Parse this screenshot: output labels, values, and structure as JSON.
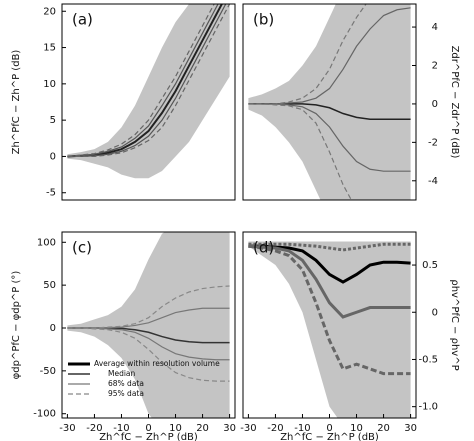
{
  "chart_data": [
    {
      "type": "line",
      "panel_label": "(a)",
      "ylabel": "Zh^PfC − Zh^P (dB)",
      "xlabel": null,
      "x": [
        -30,
        -25,
        -20,
        -15,
        -10,
        -5,
        0,
        5,
        10,
        15,
        20,
        25,
        30
      ],
      "xlim": [
        -32,
        32
      ],
      "xticks": [],
      "ylim": [
        -6,
        21
      ],
      "yticks": [
        -5,
        0,
        5,
        10,
        15,
        20
      ],
      "yaxis_side": "left",
      "band": {
        "color": "#c4c4c4",
        "upper": [
          0.3,
          0.6,
          1,
          2,
          4,
          7,
          11,
          15,
          18.5,
          21,
          24,
          27,
          30
        ],
        "lower": [
          -0.3,
          -0.5,
          -1,
          -1.5,
          -2.5,
          -3,
          -3,
          -2,
          0,
          2,
          5,
          8,
          11
        ]
      },
      "series": [
        {
          "name": "Median",
          "color": "#222222",
          "dash": "none",
          "width": 2,
          "values": [
            0,
            0.1,
            0.2,
            0.5,
            1,
            2,
            3.5,
            6,
            9,
            12.5,
            16,
            19.5,
            23
          ]
        },
        {
          "name": "68% data",
          "color": "#555555",
          "dash": "none",
          "width": 1.2,
          "values": [
            0,
            0.1,
            0.3,
            0.7,
            1.3,
            2.5,
            4.2,
            7,
            10,
            13.5,
            17,
            20.5,
            24
          ]
        },
        {
          "name": "68% data",
          "color": "#555555",
          "dash": "none",
          "width": 1.2,
          "values": [
            0,
            0,
            0.1,
            0.3,
            0.7,
            1.5,
            2.8,
            5,
            8,
            11.5,
            15,
            18.5,
            22
          ]
        },
        {
          "name": "95% data",
          "color": "#666666",
          "dash": "5 3",
          "width": 1.2,
          "values": [
            0,
            0.2,
            0.4,
            0.9,
            1.7,
            3,
            5,
            8,
            11,
            14.5,
            18,
            21.5,
            25
          ]
        },
        {
          "name": "95% data",
          "color": "#666666",
          "dash": "5 3",
          "width": 1.2,
          "values": [
            0,
            0,
            0,
            0.2,
            0.5,
            1.2,
            2.2,
            4,
            7,
            10.5,
            14,
            17.5,
            21
          ]
        }
      ]
    },
    {
      "type": "line",
      "panel_label": "(b)",
      "ylabel": "Zdr^PfC − Zdr^P (dB)",
      "xlabel": null,
      "x": [
        -30,
        -25,
        -20,
        -15,
        -10,
        -5,
        0,
        5,
        10,
        15,
        20,
        25,
        30
      ],
      "xlim": [
        -32,
        32
      ],
      "xticks": [],
      "ylim": [
        -5,
        5.2
      ],
      "yticks": [
        -4,
        -2,
        0,
        2,
        4
      ],
      "yaxis_side": "right",
      "band": {
        "color": "#c4c4c4",
        "upper": [
          0.3,
          0.5,
          0.8,
          1.2,
          2,
          3,
          4.5,
          6,
          7,
          7,
          7,
          7,
          7
        ],
        "lower": [
          -0.3,
          -0.6,
          -1.2,
          -2,
          -3,
          -4.5,
          -6,
          -7,
          -7,
          -7,
          -7,
          -7,
          -7
        ]
      },
      "series": [
        {
          "name": "Median",
          "color": "#222222",
          "dash": "none",
          "width": 1.5,
          "values": [
            0,
            0,
            0,
            0,
            0,
            -0.05,
            -0.2,
            -0.5,
            -0.7,
            -0.8,
            -0.8,
            -0.8,
            -0.8
          ]
        },
        {
          "name": "68% data",
          "color": "#666666",
          "dash": "none",
          "width": 1.2,
          "values": [
            0,
            0,
            0,
            0.05,
            0.1,
            0.3,
            0.8,
            1.8,
            3,
            3.9,
            4.6,
            4.9,
            5
          ]
        },
        {
          "name": "68% data",
          "color": "#666666",
          "dash": "none",
          "width": 1.2,
          "values": [
            0,
            0,
            0,
            -0.05,
            -0.15,
            -0.5,
            -1.2,
            -2.2,
            -3,
            -3.4,
            -3.5,
            -3.5,
            -3.5
          ]
        },
        {
          "name": "95% data",
          "color": "#777777",
          "dash": "5 3",
          "width": 1.2,
          "values": [
            0,
            0,
            0,
            0.1,
            0.3,
            0.8,
            1.8,
            3.3,
            4.5,
            5.5,
            6,
            6,
            6
          ]
        },
        {
          "name": "95% data",
          "color": "#777777",
          "dash": "5 3",
          "width": 1.2,
          "values": [
            0,
            0,
            -0.05,
            -0.1,
            -0.3,
            -1,
            -2.5,
            -4.2,
            -5.5,
            -6,
            -6,
            -6,
            -6
          ]
        }
      ]
    },
    {
      "type": "line",
      "panel_label": "(c)",
      "ylabel": "φdp^PfC − φdp^P (°)",
      "xlabel": "Zh^fC − Zh^P (dB)",
      "x": [
        -30,
        -25,
        -20,
        -15,
        -10,
        -5,
        0,
        5,
        10,
        15,
        20,
        25,
        30
      ],
      "xlim": [
        -32,
        32
      ],
      "xticks": [
        -30,
        -20,
        -10,
        0,
        10,
        20,
        30
      ],
      "ylim": [
        -105,
        112
      ],
      "yticks": [
        -100,
        -50,
        0,
        50,
        100
      ],
      "yaxis_side": "left",
      "band": {
        "color": "#c4c4c4",
        "upper": [
          3,
          5,
          10,
          15,
          25,
          45,
          80,
          110,
          120,
          120,
          120,
          120,
          120
        ],
        "lower": [
          -3,
          -5,
          -10,
          -20,
          -35,
          -60,
          -100,
          -120,
          -120,
          -120,
          -120,
          -120,
          -120
        ]
      },
      "series": [
        {
          "name": "Median",
          "color": "#333333",
          "dash": "none",
          "width": 1.5,
          "values": [
            0,
            0,
            0,
            0,
            -0.5,
            -2,
            -5,
            -10,
            -14,
            -16,
            -17,
            -17,
            -17
          ]
        },
        {
          "name": "68% data",
          "color": "#777777",
          "dash": "none",
          "width": 1.2,
          "values": [
            0,
            0,
            0,
            0.5,
            1,
            3,
            6,
            12,
            18,
            21,
            23,
            23,
            23
          ]
        },
        {
          "name": "68% data",
          "color": "#777777",
          "dash": "none",
          "width": 1.2,
          "values": [
            0,
            0,
            0,
            -1,
            -2,
            -5,
            -12,
            -22,
            -30,
            -34,
            -36,
            -37,
            -37
          ]
        },
        {
          "name": "95% data",
          "color": "#888888",
          "dash": "5 3",
          "width": 1.2,
          "values": [
            0,
            0,
            0,
            1,
            2,
            5,
            12,
            25,
            35,
            42,
            46,
            48,
            49
          ]
        },
        {
          "name": "95% data",
          "color": "#888888",
          "dash": "5 3",
          "width": 1.2,
          "values": [
            0,
            0,
            -1,
            -2,
            -5,
            -12,
            -25,
            -40,
            -52,
            -58,
            -61,
            -62,
            -62
          ]
        }
      ],
      "legend": {
        "corner": "lower left",
        "entries": [
          {
            "label": "Average within resolution volume",
            "color": "#000000",
            "dash": "none",
            "width": 3
          },
          {
            "label": "Median",
            "color": "#333333",
            "dash": "none",
            "width": 1.5
          },
          {
            "label": "68% data",
            "color": "#777777",
            "dash": "none",
            "width": 1.2
          },
          {
            "label": "95% data",
            "color": "#888888",
            "dash": "5 3",
            "width": 1.2
          }
        ]
      }
    },
    {
      "type": "line",
      "panel_label": "(d)",
      "ylabel": "ρhv^PfC − ρhv^P",
      "xlabel": "Zh^fC − Zh^P (dB)",
      "x": [
        -30,
        -25,
        -20,
        -15,
        -10,
        -5,
        0,
        5,
        10,
        15,
        20,
        25,
        30
      ],
      "xlim": [
        -32,
        32
      ],
      "xticks": [
        -30,
        -20,
        -10,
        0,
        10,
        20,
        30
      ],
      "ylim": [
        -1.12,
        0.85
      ],
      "yticks": [
        {
          "value": -1,
          "label": "-1.0"
        },
        -0.5,
        0,
        0.5
      ],
      "yaxis_side": "right",
      "band": {
        "color": "#c4c4c4",
        "upper": [
          0.75,
          0.75,
          0.75,
          0.75,
          0.75,
          0.75,
          0.75,
          0.75,
          0.75,
          0.75,
          0.75,
          0.75,
          0.75
        ],
        "lower": [
          0.7,
          0.6,
          0.5,
          0.3,
          0,
          -0.5,
          -1,
          -1.2,
          -1.2,
          -1.2,
          -1.2,
          -1.2,
          -1.2
        ]
      },
      "series": [
        {
          "name": "Median",
          "color": "#000000",
          "dash": "none",
          "width": 3,
          "values": [
            0.7,
            0.7,
            0.69,
            0.68,
            0.65,
            0.55,
            0.4,
            0.32,
            0.4,
            0.5,
            0.53,
            0.53,
            0.52
          ]
        },
        {
          "name": "68% data",
          "color": "#666666",
          "dash": "3 2",
          "width": 3,
          "values": [
            0.72,
            0.72,
            0.72,
            0.72,
            0.71,
            0.7,
            0.68,
            0.66,
            0.68,
            0.7,
            0.72,
            0.72,
            0.72
          ]
        },
        {
          "name": "68% data",
          "color": "#666666",
          "dash": "none",
          "width": 3,
          "values": [
            0.7,
            0.69,
            0.68,
            0.65,
            0.55,
            0.35,
            0.1,
            -0.05,
            0,
            0.05,
            0.05,
            0.05,
            0.05
          ]
        },
        {
          "name": "95% data",
          "color": "#666666",
          "dash": "6 3",
          "width": 3,
          "values": [
            0.7,
            0.68,
            0.65,
            0.6,
            0.45,
            0.1,
            -0.3,
            -0.6,
            -0.55,
            -0.6,
            -0.65,
            -0.65,
            -0.65
          ]
        }
      ]
    }
  ]
}
